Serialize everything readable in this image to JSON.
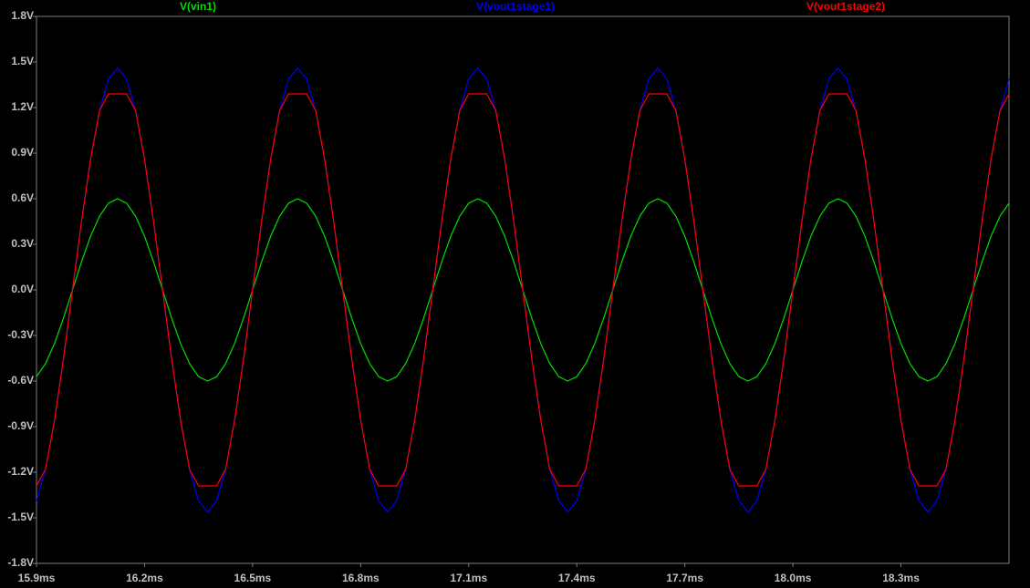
{
  "chart_data": {
    "type": "line",
    "x": [
      15.9,
      15.925,
      15.95,
      15.975,
      16,
      16.025,
      16.05,
      16.075,
      16.1,
      16.125,
      16.15,
      16.175,
      16.2,
      16.225,
      16.25,
      16.275,
      16.3,
      16.325,
      16.35,
      16.375,
      16.4,
      16.425,
      16.45,
      16.475,
      16.5,
      16.525,
      16.55,
      16.575,
      16.6,
      16.625,
      16.65,
      16.675,
      16.7,
      16.725,
      16.75,
      16.775,
      16.8,
      16.825,
      16.85,
      16.875,
      16.9,
      16.925,
      16.95,
      16.975,
      17,
      17.025,
      17.05,
      17.075,
      17.1,
      17.125,
      17.15,
      17.175,
      17.2,
      17.225,
      17.25,
      17.275,
      17.3,
      17.325,
      17.35,
      17.375,
      17.4,
      17.425,
      17.45,
      17.475,
      17.5,
      17.525,
      17.55,
      17.575,
      17.6,
      17.625,
      17.65,
      17.675,
      17.7,
      17.725,
      17.75,
      17.775,
      17.8,
      17.825,
      17.85,
      17.875,
      17.9,
      17.925,
      17.95,
      17.975,
      18,
      18.025,
      18.05,
      18.075,
      18.1,
      18.125,
      18.15,
      18.175,
      18.2,
      18.225,
      18.25,
      18.275,
      18.3,
      18.325,
      18.35,
      18.375,
      18.4,
      18.425,
      18.45,
      18.475,
      18.5,
      18.525,
      18.55,
      18.575,
      18.6
    ],
    "series": [
      {
        "name": "V(vin1)",
        "color": "#00e000",
        "values": [
          -0.571,
          -0.485,
          -0.353,
          -0.185,
          0,
          0.185,
          0.353,
          0.485,
          0.571,
          0.6,
          0.571,
          0.485,
          0.353,
          0.185,
          0,
          -0.185,
          -0.353,
          -0.485,
          -0.571,
          -0.6,
          -0.571,
          -0.485,
          -0.353,
          -0.185,
          0,
          0.185,
          0.353,
          0.485,
          0.571,
          0.6,
          0.571,
          0.485,
          0.353,
          0.185,
          0,
          -0.185,
          -0.353,
          -0.485,
          -0.571,
          -0.6,
          -0.571,
          -0.485,
          -0.353,
          -0.185,
          0,
          0.185,
          0.353,
          0.485,
          0.571,
          0.6,
          0.571,
          0.485,
          0.353,
          0.185,
          0,
          -0.185,
          -0.353,
          -0.485,
          -0.571,
          -0.6,
          -0.571,
          -0.485,
          -0.353,
          -0.185,
          0,
          0.185,
          0.353,
          0.485,
          0.571,
          0.6,
          0.571,
          0.485,
          0.353,
          0.185,
          0,
          -0.185,
          -0.353,
          -0.485,
          -0.571,
          -0.6,
          -0.571,
          -0.485,
          -0.353,
          -0.185,
          0,
          0.185,
          0.353,
          0.485,
          0.571,
          0.6,
          0.571,
          0.485,
          0.353,
          0.185,
          0,
          -0.185,
          -0.353,
          -0.485,
          -0.571,
          -0.6,
          -0.571,
          -0.485,
          -0.353,
          -0.185,
          0,
          0.185,
          0.353,
          0.485,
          0.571
        ]
      },
      {
        "name": "V(vout1stage1)",
        "color": "#0000ff",
        "values": [
          -1.389,
          -1.181,
          -0.858,
          -0.451,
          0,
          0.451,
          0.858,
          1.181,
          1.389,
          1.46,
          1.389,
          1.181,
          0.858,
          0.451,
          0,
          -0.451,
          -0.858,
          -1.181,
          -1.389,
          -1.46,
          -1.389,
          -1.181,
          -0.858,
          -0.451,
          0,
          0.451,
          0.858,
          1.181,
          1.389,
          1.46,
          1.389,
          1.181,
          0.858,
          0.451,
          0,
          -0.451,
          -0.858,
          -1.181,
          -1.389,
          -1.46,
          -1.389,
          -1.181,
          -0.858,
          -0.451,
          0,
          0.451,
          0.858,
          1.181,
          1.389,
          1.46,
          1.389,
          1.181,
          0.858,
          0.451,
          0,
          -0.451,
          -0.858,
          -1.181,
          -1.389,
          -1.46,
          -1.389,
          -1.181,
          -0.858,
          -0.451,
          0,
          0.451,
          0.858,
          1.181,
          1.389,
          1.46,
          1.389,
          1.181,
          0.858,
          0.451,
          0,
          -0.451,
          -0.858,
          -1.181,
          -1.389,
          -1.46,
          -1.389,
          -1.181,
          -0.858,
          -0.451,
          0,
          0.451,
          0.858,
          1.181,
          1.389,
          1.46,
          1.389,
          1.181,
          0.858,
          0.451,
          0,
          -0.451,
          -0.858,
          -1.181,
          -1.389,
          -1.46,
          -1.389,
          -1.181,
          -0.858,
          -0.451,
          0,
          0.451,
          0.858,
          1.181,
          1.389
        ]
      },
      {
        "name": "V(vout1stage2)",
        "color": "#ff0000",
        "values": [
          -1.29,
          -1.181,
          -0.858,
          -0.451,
          0,
          0.451,
          0.858,
          1.181,
          1.29,
          1.29,
          1.29,
          1.181,
          0.858,
          0.451,
          0,
          -0.451,
          -0.858,
          -1.181,
          -1.29,
          -1.29,
          -1.29,
          -1.181,
          -0.858,
          -0.451,
          0,
          0.451,
          0.858,
          1.181,
          1.29,
          1.29,
          1.29,
          1.181,
          0.858,
          0.451,
          0,
          -0.451,
          -0.858,
          -1.181,
          -1.29,
          -1.29,
          -1.29,
          -1.181,
          -0.858,
          -0.451,
          0,
          0.451,
          0.858,
          1.181,
          1.29,
          1.29,
          1.29,
          1.181,
          0.858,
          0.451,
          0,
          -0.451,
          -0.858,
          -1.181,
          -1.29,
          -1.29,
          -1.29,
          -1.181,
          -0.858,
          -0.451,
          0,
          0.451,
          0.858,
          1.181,
          1.29,
          1.29,
          1.29,
          1.181,
          0.858,
          0.451,
          0,
          -0.451,
          -0.858,
          -1.181,
          -1.29,
          -1.29,
          -1.29,
          -1.181,
          -0.858,
          -0.451,
          0,
          0.451,
          0.858,
          1.181,
          1.29,
          1.29,
          1.29,
          1.181,
          0.858,
          0.451,
          0,
          -0.451,
          -0.858,
          -1.181,
          -1.29,
          -1.29,
          -1.29,
          -1.181,
          -0.858,
          -0.451,
          0,
          0.451,
          0.858,
          1.181,
          1.29
        ]
      }
    ],
    "xlim": [
      15.9,
      18.6
    ],
    "xticks": [
      {
        "value": 15.9,
        "label": "15.9ms"
      },
      {
        "value": 16.2,
        "label": "16.2ms"
      },
      {
        "value": 16.5,
        "label": "16.5ms"
      },
      {
        "value": 16.8,
        "label": "16.8ms"
      },
      {
        "value": 17.1,
        "label": "17.1ms"
      },
      {
        "value": 17.4,
        "label": "17.4ms"
      },
      {
        "value": 17.7,
        "label": "17.7ms"
      },
      {
        "value": 18.0,
        "label": "18.0ms"
      },
      {
        "value": 18.3,
        "label": "18.3ms"
      }
    ],
    "ylim": [
      -1.8,
      1.8
    ],
    "yticks": [
      {
        "value": -1.8,
        "label": "-1.8V"
      },
      {
        "value": -1.5,
        "label": "-1.5V"
      },
      {
        "value": -1.2,
        "label": "-1.2V"
      },
      {
        "value": -0.9,
        "label": "-0.9V"
      },
      {
        "value": -0.6,
        "label": "-0.6V"
      },
      {
        "value": -0.3,
        "label": "-0.3V"
      },
      {
        "value": 0,
        "label": "0.0V"
      },
      {
        "value": 0.3,
        "label": "0.3V"
      },
      {
        "value": 0.6,
        "label": "0.6V"
      },
      {
        "value": 0.9,
        "label": "0.9V"
      },
      {
        "value": 1.2,
        "label": "1.2V"
      },
      {
        "value": 1.5,
        "label": "1.5V"
      },
      {
        "value": 1.8,
        "label": "1.8V"
      }
    ]
  }
}
